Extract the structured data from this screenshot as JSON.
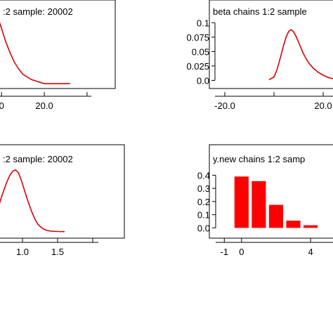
{
  "chart_data": [
    {
      "type": "line",
      "title": ":2 sample: 20002",
      "xlabel": "",
      "ylabel": "",
      "x_tick_labels": [
        {
          "value": 0,
          "label": "0"
        },
        {
          "value": 20,
          "label": "20.0"
        },
        {
          "value": 40,
          "label": ""
        }
      ],
      "y_tick_labels": [],
      "xlim": [
        -4,
        42
      ],
      "series": [
        {
          "color": "#dd0000",
          "x": [
            -4,
            -2,
            0,
            2,
            4,
            6,
            8,
            10,
            12,
            14,
            16,
            18,
            20,
            24,
            28,
            32
          ],
          "y": [
            0.062,
            0.052,
            0.042,
            0.032,
            0.024,
            0.017,
            0.012,
            0.008,
            0.006,
            0.004,
            0.003,
            0.002,
            0.001,
            0.001,
            0.001,
            0.001
          ]
        }
      ]
    },
    {
      "type": "line",
      "title": "beta chains 1:2 sample",
      "xlabel": "",
      "ylabel": "",
      "x_tick_labels": [
        {
          "value": -20,
          "label": "-20.0"
        },
        {
          "value": 0,
          "label": ""
        },
        {
          "value": 20,
          "label": "20.0"
        }
      ],
      "y_tick_labels": [
        {
          "value": 0.1,
          "label": "0.1"
        },
        {
          "value": 0.075,
          "label": "0.075"
        },
        {
          "value": 0.05,
          "label": "0.05"
        },
        {
          "value": 0.025,
          "label": "0.025"
        },
        {
          "value": 0.0,
          "label": "0.0"
        }
      ],
      "xlim": [
        -24,
        24
      ],
      "ylim": [
        -0.008,
        0.115
      ],
      "series": [
        {
          "color": "#dd0000",
          "x": [
            -2,
            0,
            1,
            2,
            3,
            4,
            5,
            6,
            7,
            8,
            9,
            10,
            11,
            12,
            13,
            14,
            16,
            18,
            20,
            22,
            24
          ],
          "y": [
            0.001,
            0.006,
            0.016,
            0.03,
            0.046,
            0.062,
            0.076,
            0.085,
            0.088,
            0.084,
            0.076,
            0.066,
            0.056,
            0.046,
            0.038,
            0.031,
            0.021,
            0.014,
            0.009,
            0.005,
            0.003
          ]
        }
      ]
    },
    {
      "type": "line",
      "title": ":2 sample: 20002",
      "xlabel": "",
      "ylabel": "",
      "x_tick_labels": [
        {
          "value": 0.5,
          "label": ""
        },
        {
          "value": 1.0,
          "label": "1.0"
        },
        {
          "value": 1.5,
          "label": "1.5"
        },
        {
          "value": 2.0,
          "label": ""
        }
      ],
      "y_tick_labels": [],
      "xlim": [
        0.58,
        2.08
      ],
      "series": [
        {
          "color": "#dd0000",
          "x": [
            0.58,
            0.62,
            0.66,
            0.7,
            0.74,
            0.78,
            0.82,
            0.86,
            0.9,
            0.94,
            0.98,
            1.02,
            1.06,
            1.1,
            1.14,
            1.18,
            1.22,
            1.26,
            1.3,
            1.35,
            1.4,
            1.5,
            1.6
          ],
          "y": [
            0.15,
            0.25,
            0.37,
            0.5,
            0.62,
            0.73,
            0.82,
            0.88,
            0.9,
            0.86,
            0.76,
            0.63,
            0.5,
            0.38,
            0.27,
            0.18,
            0.11,
            0.07,
            0.04,
            0.02,
            0.01,
            0.005,
            0.003
          ]
        }
      ]
    },
    {
      "type": "bar",
      "title": "y.new chains 1:2 samp",
      "xlabel": "",
      "ylabel": "",
      "x_tick_labels": [
        {
          "value": -1,
          "label": "-1"
        },
        {
          "value": 0,
          "label": "0"
        },
        {
          "value": 4,
          "label": "4"
        }
      ],
      "y_tick_labels": [
        {
          "value": 0.4,
          "label": "0.4"
        },
        {
          "value": 0.3,
          "label": "0.3"
        },
        {
          "value": 0.2,
          "label": "0.2"
        },
        {
          "value": 0.1,
          "label": "0.1"
        },
        {
          "value": 0.0,
          "label": "0.0"
        }
      ],
      "xlim": [
        -1.5,
        5.3
      ],
      "ylim": [
        -0.03,
        0.45
      ],
      "categories": [
        0,
        1,
        2,
        3,
        4
      ],
      "values": [
        0.39,
        0.355,
        0.175,
        0.055,
        0.02
      ],
      "color": "#ff0000"
    }
  ]
}
